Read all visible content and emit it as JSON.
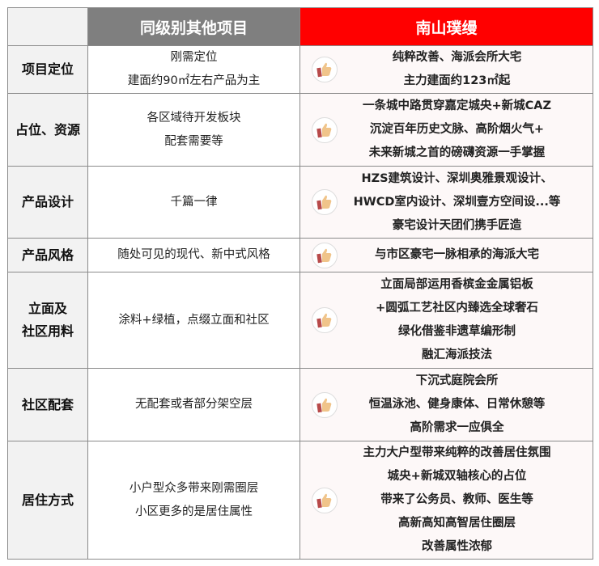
{
  "header": {
    "other": "同级别其他项目",
    "this": "南山璞缦"
  },
  "colors": {
    "header_other": "#7f7f7f",
    "header_this": "#ff0000"
  },
  "rows": [
    {
      "label": [
        "项目定位"
      ],
      "other": [
        "刚需定位",
        "建面约90㎡左右产品为主"
      ],
      "this": [
        "纯粹改善、海派会所大宅",
        "主力建面约123㎡起"
      ]
    },
    {
      "label": [
        "占位、资源"
      ],
      "other": [
        "各区域待开发板块",
        "配套需要等"
      ],
      "this": [
        "一条城中路贯穿嘉定城央+新城CAZ",
        "沉淀百年历史文脉、高阶烟火气+",
        "未来新城之首的磅礴资源一手掌握"
      ]
    },
    {
      "label": [
        "产品设计"
      ],
      "other": [
        "千篇一律"
      ],
      "this": [
        "HZS建筑设计、深圳奥雅景观设计、",
        "HWCD室内设计、深圳壹方空间设...等",
        "豪宅设计天团们携手匠造"
      ]
    },
    {
      "label": [
        "产品风格"
      ],
      "other": [
        "随处可见的现代、新中式风格"
      ],
      "this": [
        "与市区豪宅一脉相承的海派大宅"
      ]
    },
    {
      "label": [
        "立面及",
        "社区用料"
      ],
      "other": [
        "涂料+绿植，点缀立面和社区"
      ],
      "this": [
        "立面局部运用香槟金金属铝板",
        "+圆弧工艺社区内臻选全球奢石",
        "绿化借鉴非遗草编形制",
        "融汇海派技法"
      ]
    },
    {
      "label": [
        "社区配套"
      ],
      "other": [
        "无配套或者部分架空层"
      ],
      "this": [
        "下沉式庭院会所",
        "恒温泳池、健身康体、日常休憩等",
        "高阶需求一应俱全"
      ]
    },
    {
      "label": [
        "居住方式"
      ],
      "other": [
        "小户型众多带来刚需圈层",
        "小区更多的是居住属性"
      ],
      "this": [
        "主力大户型带来纯粹的改善居住氛围",
        "城央+新城双轴核心的占位",
        "带来了公务员、教师、医生等",
        "高新高知高智居住圈层",
        "改善属性浓郁"
      ]
    }
  ]
}
